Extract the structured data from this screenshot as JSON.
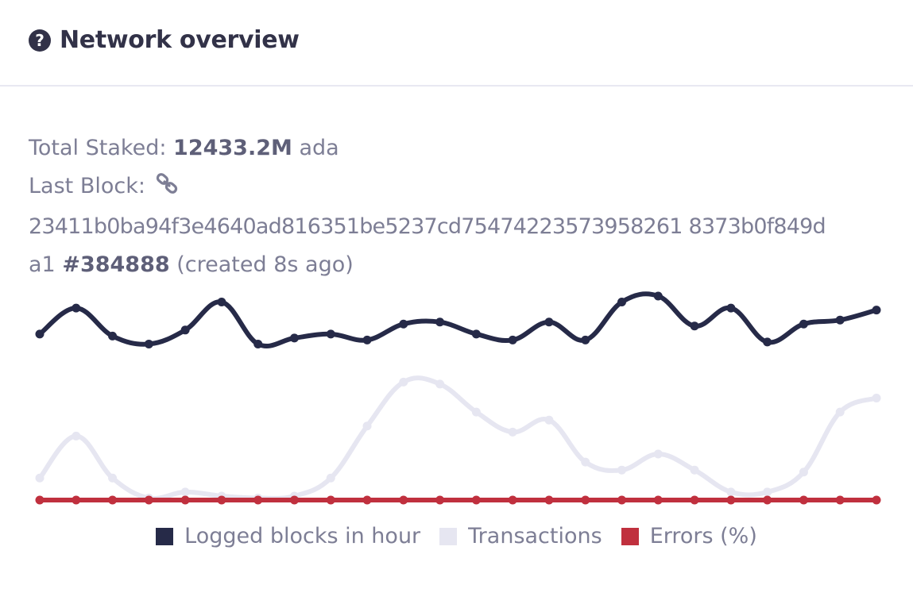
{
  "header": {
    "title": "Network overview",
    "icon": "question-circle-icon"
  },
  "stats": {
    "total_staked_label": "Total Staked:",
    "total_staked_value": "12433.2M",
    "total_staked_unit": "ada",
    "last_block_label": "Last Block:",
    "last_block_icon": "link-icon",
    "block_hash_line1": "23411b0ba94f3e4640ad816351be5237cd75474223573958261 8373b0f849d",
    "block_hash_line2": "a1",
    "block_number": "#384888",
    "created": "(created 8s ago)"
  },
  "colors": {
    "blocks": "#262a48",
    "transactions": "#e6e6f1",
    "errors": "#c0303e"
  },
  "chart_data": {
    "type": "line",
    "x": [
      1,
      2,
      3,
      4,
      5,
      6,
      7,
      8,
      9,
      10,
      11,
      12,
      13,
      14,
      15,
      16,
      17,
      18,
      19,
      20,
      21,
      22,
      23,
      24
    ],
    "series": [
      {
        "name": "Logged blocks in hour",
        "color": "#262a48",
        "values": [
          0.83,
          0.96,
          0.82,
          0.78,
          0.85,
          0.99,
          0.78,
          0.81,
          0.83,
          0.8,
          0.88,
          0.89,
          0.83,
          0.8,
          0.89,
          0.8,
          0.99,
          1.02,
          0.87,
          0.96,
          0.79,
          0.88,
          0.9,
          0.95
        ]
      },
      {
        "name": "Transactions",
        "color": "#e6e6f1",
        "values": [
          0.11,
          0.32,
          0.11,
          0.01,
          0.04,
          0.02,
          0.01,
          0.02,
          0.11,
          0.37,
          0.59,
          0.58,
          0.44,
          0.34,
          0.4,
          0.19,
          0.15,
          0.23,
          0.15,
          0.04,
          0.04,
          0.14,
          0.44,
          0.51
        ]
      },
      {
        "name": "Errors (%)",
        "color": "#c0303e",
        "values": [
          0,
          0,
          0,
          0,
          0,
          0,
          0,
          0,
          0,
          0,
          0,
          0,
          0,
          0,
          0,
          0,
          0,
          0,
          0,
          0,
          0,
          0,
          0,
          0
        ]
      }
    ],
    "legend_position": "bottom",
    "grid": false
  }
}
